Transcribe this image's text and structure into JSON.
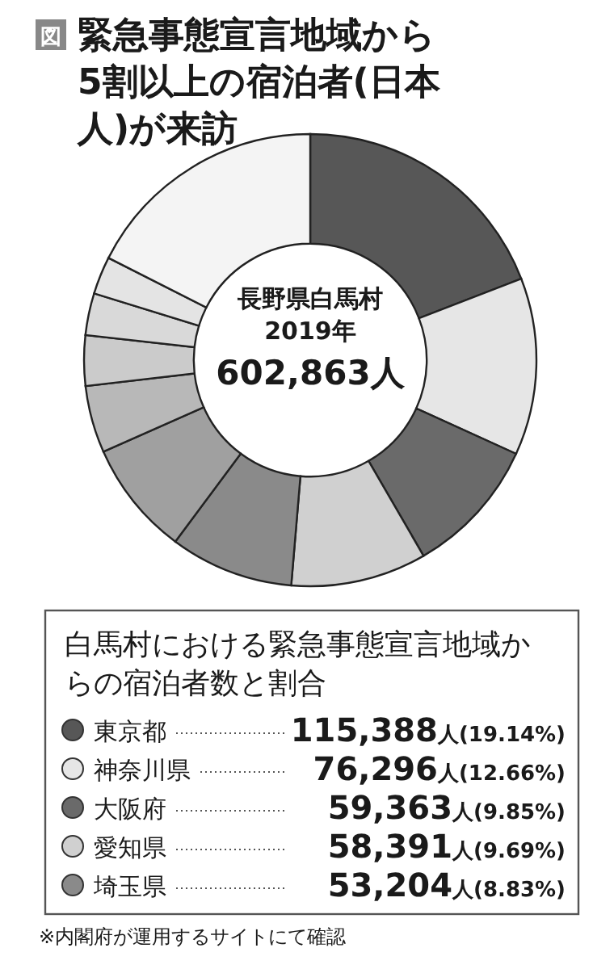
{
  "chart_data": {
    "type": "donut",
    "title": "緊急事態宣言地域から5割以上の宿泊者(日本人)が来訪",
    "legend_title": "白馬村における緊急事態宣言地域からの宿泊者数と割合",
    "categories": [
      "東京都",
      "神奈川県",
      "大阪府",
      "愛知県",
      "埼玉県",
      null,
      null,
      null,
      null,
      null,
      null
    ],
    "values": [
      19.14,
      12.66,
      9.85,
      9.69,
      8.83,
      8.2,
      4.8,
      3.6,
      3.0,
      2.7,
      17.53
    ],
    "colors": [
      "#575757",
      "#e6e6e6",
      "#6a6a6a",
      "#d0d0d0",
      "#8a8a8a",
      "#a0a0a0",
      "#b8b8b8",
      "#cbcbcb",
      "#d9d9d9",
      "#e4e4e4",
      "#f4f4f4"
    ],
    "value_labels": [
      "115,388人(19.14%)",
      "76,296人(12.66%)",
      "59,363人(9.85%)",
      "58,391人(9.69%)",
      "53,204人(8.83%)",
      null,
      null,
      null,
      null,
      null,
      null
    ],
    "legend": "bottom",
    "annotations": [
      "図",
      "長野県白馬村\n2019年\n602,863人",
      "※内閣府が運用するサイトにて確認"
    ]
  }
}
